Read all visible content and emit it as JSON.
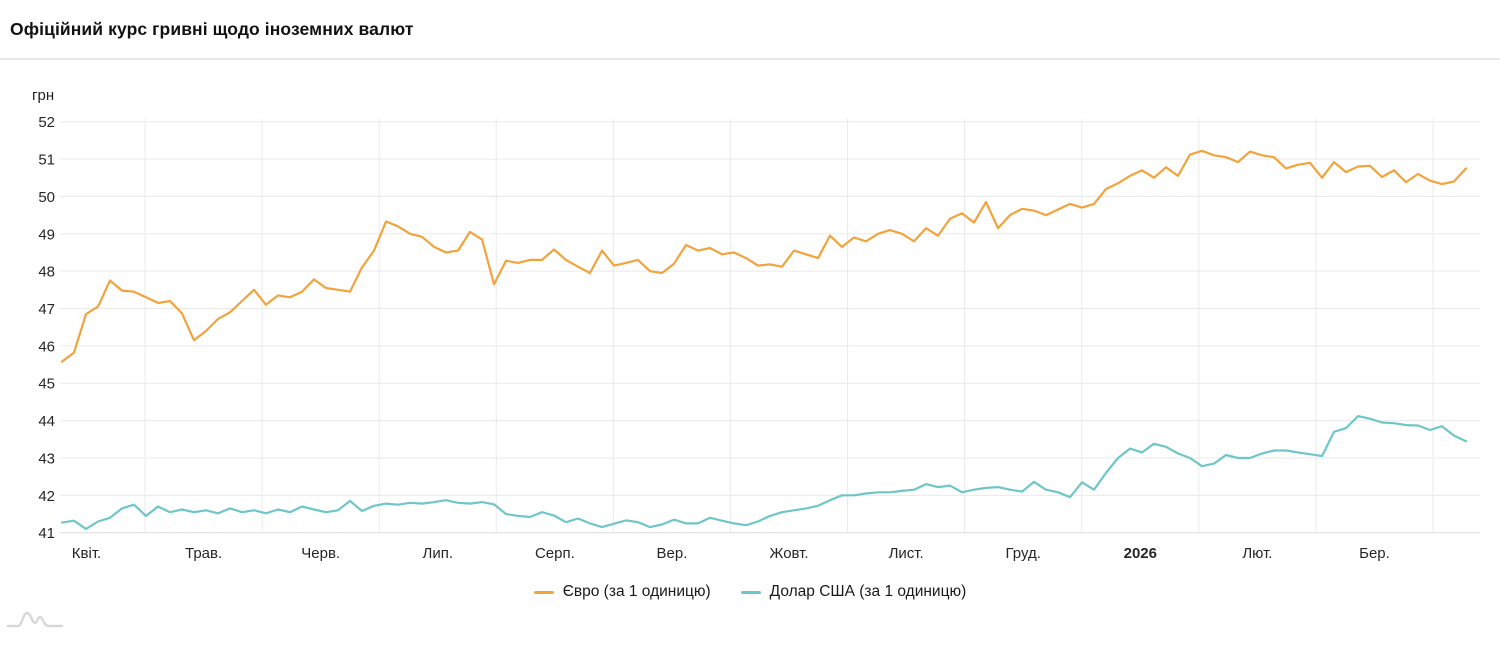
{
  "header": {
    "title": "Офіційний курс гривні щодо іноземних валют"
  },
  "chart_data": {
    "type": "line",
    "title": "Офіційний курс гривні щодо іноземних валют",
    "unit_label": "грн",
    "ylabel": "грн",
    "ylim": [
      41,
      52
    ],
    "grid": true,
    "legend_position": "bottom",
    "y_ticks": [
      52,
      51,
      50,
      49,
      48,
      47,
      46,
      45,
      44,
      43,
      42,
      41
    ],
    "x_tick_labels": [
      "Квіт.",
      "Трав.",
      "Черв.",
      "Лип.",
      "Серп.",
      "Вер.",
      "Жовт.",
      "Лист.",
      "Груд.",
      "2026",
      "Лют.",
      "Бер."
    ],
    "x_bold_label": "2026",
    "grid_color": "#eaeaea",
    "axis_text_color": "#262626",
    "series": [
      {
        "name": "Євро (за 1 одиницю)",
        "color": "#F2A33C",
        "values": [
          45.58,
          45.82,
          46.85,
          47.05,
          47.75,
          47.48,
          47.45,
          47.3,
          47.15,
          47.2,
          46.87,
          46.15,
          46.4,
          46.72,
          46.9,
          47.2,
          47.5,
          47.1,
          47.35,
          47.3,
          47.45,
          47.78,
          47.55,
          47.5,
          47.45,
          48.1,
          48.55,
          49.33,
          49.2,
          49.0,
          48.92,
          48.65,
          48.5,
          48.55,
          49.05,
          48.85,
          47.65,
          48.28,
          48.22,
          48.3,
          48.3,
          48.58,
          48.3,
          48.12,
          47.95,
          48.55,
          48.15,
          48.22,
          48.3,
          48.0,
          47.95,
          48.2,
          48.7,
          48.55,
          48.62,
          48.45,
          48.5,
          48.35,
          48.15,
          48.18,
          48.12,
          48.55,
          48.45,
          48.35,
          48.95,
          48.65,
          48.9,
          48.8,
          49.0,
          49.1,
          49.0,
          48.8,
          49.15,
          48.95,
          49.4,
          49.55,
          49.3,
          49.85,
          49.15,
          49.5,
          49.67,
          49.62,
          49.5,
          49.65,
          49.8,
          49.7,
          49.8,
          50.2,
          50.35,
          50.55,
          50.7,
          50.5,
          50.78,
          50.55,
          51.12,
          51.22,
          51.1,
          51.05,
          50.92,
          51.2,
          51.1,
          51.05,
          50.75,
          50.85,
          50.9,
          50.5,
          50.92,
          50.65,
          50.8,
          50.82,
          50.52,
          50.7,
          50.38,
          50.6,
          50.42,
          50.33,
          50.4,
          50.75
        ]
      },
      {
        "name": "Долар США (за 1 одиницю)",
        "color": "#6EC6CA",
        "values": [
          41.27,
          41.32,
          41.1,
          41.3,
          41.4,
          41.65,
          41.75,
          41.45,
          41.7,
          41.55,
          41.62,
          41.55,
          41.6,
          41.52,
          41.65,
          41.55,
          41.6,
          41.52,
          41.62,
          41.55,
          41.7,
          41.62,
          41.55,
          41.6,
          41.85,
          41.58,
          41.72,
          41.78,
          41.75,
          41.8,
          41.78,
          41.82,
          41.87,
          41.8,
          41.78,
          41.82,
          41.76,
          41.5,
          41.45,
          41.42,
          41.55,
          41.46,
          41.28,
          41.38,
          41.25,
          41.15,
          41.24,
          41.33,
          41.28,
          41.15,
          41.22,
          41.35,
          41.25,
          41.25,
          41.4,
          41.32,
          41.25,
          41.2,
          41.3,
          41.45,
          41.55,
          41.6,
          41.65,
          41.72,
          41.87,
          42.0,
          42.0,
          42.05,
          42.08,
          42.08,
          42.12,
          42.15,
          42.3,
          42.22,
          42.26,
          42.08,
          42.15,
          42.2,
          42.22,
          42.15,
          42.1,
          42.36,
          42.15,
          42.08,
          41.95,
          42.35,
          42.15,
          42.6,
          43.0,
          43.25,
          43.15,
          43.38,
          43.3,
          43.12,
          43.0,
          42.78,
          42.85,
          43.08,
          43.0,
          43.0,
          43.12,
          43.2,
          43.2,
          43.15,
          43.1,
          43.05,
          43.7,
          43.8,
          44.12,
          44.05,
          43.95,
          43.93,
          43.88,
          43.87,
          43.75,
          43.85,
          43.6,
          43.45
        ]
      }
    ]
  }
}
